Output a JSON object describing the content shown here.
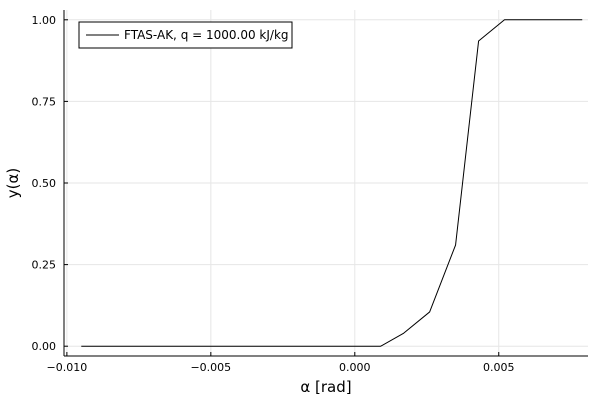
{
  "chart_data": {
    "type": "line",
    "title": "",
    "xlabel": "α [rad]",
    "ylabel": "y(α)",
    "xlim": [
      -0.0101,
      0.0081
    ],
    "ylim": [
      -0.03,
      1.03
    ],
    "grid": true,
    "legend_position": "top-left",
    "x_ticks": [
      {
        "value": -0.01,
        "label": "−0.010"
      },
      {
        "value": -0.005,
        "label": "−0.005"
      },
      {
        "value": 0.0,
        "label": "0.000"
      },
      {
        "value": 0.005,
        "label": "0.005"
      }
    ],
    "y_ticks": [
      {
        "value": 0.0,
        "label": "0.00"
      },
      {
        "value": 0.25,
        "label": "0.25"
      },
      {
        "value": 0.5,
        "label": "0.50"
      },
      {
        "value": 0.75,
        "label": "0.75"
      },
      {
        "value": 1.0,
        "label": "1.00"
      }
    ],
    "series": [
      {
        "name": "FTAS-AK, q = 1000.00 kJ/kg",
        "color": "#000000",
        "x": [
          -0.0095,
          0.0009,
          0.0017,
          0.0026,
          0.0035,
          0.0043,
          0.0052,
          0.0061,
          0.007,
          0.0079
        ],
        "y": [
          0.0,
          0.0,
          0.04,
          0.105,
          0.31,
          0.935,
          1.0,
          1.0,
          1.0,
          1.0
        ]
      }
    ]
  }
}
